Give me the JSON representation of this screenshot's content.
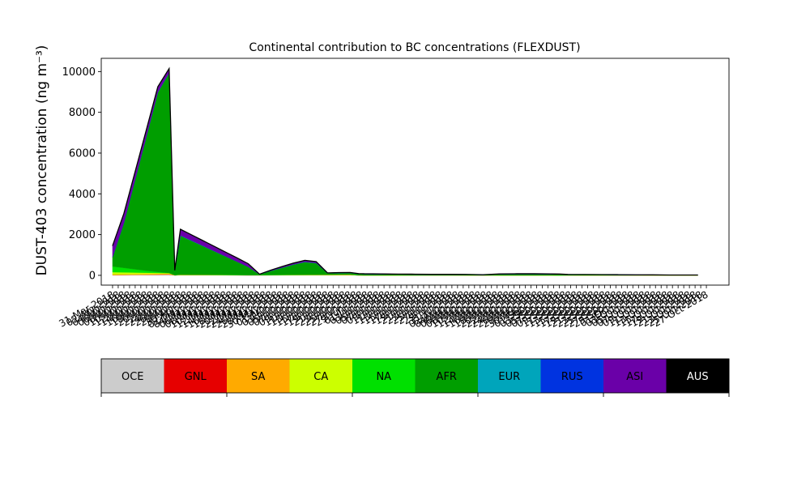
{
  "chart_data": {
    "type": "area",
    "stacked": true,
    "title": "Continental contribution to BC concentrations (FLEXDUST)",
    "ylabel": "DUST-403 concentration (ng m⁻³)",
    "xlabel": "",
    "ylim": [
      -480,
      10650
    ],
    "yticks": [
      0,
      2000,
      4000,
      6000,
      8000,
      10000
    ],
    "grid": false,
    "x": [
      "2018-03-31",
      "2018-04-04",
      "2018-04-08",
      "2018-04-12",
      "2018-04-16",
      "2018-04-20",
      "2018-04-22",
      "2018-04-24",
      "2018-04-28",
      "2018-05-02",
      "2018-05-06",
      "2018-05-10",
      "2018-05-14",
      "2018-05-18",
      "2018-05-22",
      "2018-05-26",
      "2018-05-30",
      "2018-06-03",
      "2018-06-07",
      "2018-06-11",
      "2018-06-15",
      "2018-06-19",
      "2018-06-23",
      "2018-06-26",
      "2018-06-28",
      "2018-07-04",
      "2018-07-10",
      "2018-07-16",
      "2018-07-22",
      "2018-07-28",
      "2018-08-03",
      "2018-08-09",
      "2018-08-15",
      "2018-08-21",
      "2018-08-27",
      "2018-09-02",
      "2018-09-05",
      "2018-09-08",
      "2018-09-14",
      "2018-09-20",
      "2018-09-26",
      "2018-10-02",
      "2018-10-08",
      "2018-10-14",
      "2018-10-20",
      "2018-10-24"
    ],
    "xtick_labels": [
      "31-Mar-2018",
      "02-Apr-2018",
      "04-Apr-2018",
      "06-Apr-2018",
      "08-Apr-2018",
      "10-Apr-2018",
      "12-Apr-2018",
      "14-Apr-2018",
      "16-Apr-2018",
      "18-Apr-2018",
      "20-Apr-2018",
      "22-Apr-2018",
      "24-Apr-2018",
      "26-Apr-2018",
      "28-Apr-2018",
      "30-Apr-2018",
      "02-May-2018",
      "04-May-2018",
      "06-May-2018",
      "08-May-2018",
      "10-May-2018",
      "12-May-2018",
      "14-May-2018",
      "16-May-2018",
      "18-May-2018",
      "20-May-2018",
      "22-May-2018",
      "24-May-2018",
      "26-May-2018",
      "28-May-2018",
      "30-May-2018",
      "01-Jun-2018",
      "03-Jun-2018",
      "05-Jun-2018",
      "07-Jun-2018",
      "09-Jun-2018",
      "11-Jun-2018",
      "13-Jun-2018",
      "15-Jun-2018",
      "17-Jun-2018",
      "19-Jun-2018",
      "21-Jun-2018",
      "23-Jun-2018",
      "25-Jun-2018",
      "27-Jun-2018",
      "29-Jun-2018",
      "01-Jul-2018",
      "03-Jul-2018",
      "05-Jul-2018",
      "07-Jul-2018",
      "09-Jul-2018",
      "11-Jul-2018",
      "13-Jul-2018",
      "15-Jul-2018",
      "17-Jul-2018",
      "19-Jul-2018",
      "21-Jul-2018",
      "23-Jul-2018",
      "25-Jul-2018",
      "27-Jul-2018",
      "29-Jul-2018",
      "31-Jul-2018",
      "02-Aug-2018",
      "04-Aug-2018",
      "06-Aug-2018",
      "08-Aug-2018",
      "10-Aug-2018",
      "12-Aug-2018",
      "14-Aug-2018",
      "16-Aug-2018",
      "18-Aug-2018",
      "20-Aug-2018",
      "22-Aug-2018",
      "24-Aug-2018",
      "26-Aug-2018",
      "28-Aug-2018",
      "30-Aug-2018",
      "01-Sep-2018",
      "03-Sep-2018",
      "05-Sep-2018",
      "07-Sep-2018",
      "09-Sep-2018",
      "11-Sep-2018",
      "13-Sep-2018",
      "15-Sep-2018",
      "17-Sep-2018",
      "19-Sep-2018",
      "21-Sep-2018",
      "23-Sep-2018",
      "25-Sep-2018",
      "27-Sep-2018",
      "29-Sep-2018",
      "01-Oct-2018",
      "03-Oct-2018",
      "05-Oct-2018",
      "07-Oct-2018",
      "09-Oct-2018",
      "11-Oct-2018",
      "13-Oct-2018",
      "15-Oct-2018",
      "17-Oct-2018",
      "19-Oct-2018",
      "21-Oct-2018",
      "23-Oct-2018",
      "25-Oct-2018",
      "27-Oct-2018"
    ],
    "series": [
      {
        "name": "OCE",
        "color": "#cccccc",
        "values": [
          15,
          20,
          25,
          30,
          35,
          40,
          2,
          10,
          9,
          8,
          7,
          6,
          5,
          3,
          4,
          5,
          6,
          7,
          8,
          9,
          10,
          11,
          12,
          2,
          1,
          1,
          1,
          1,
          1,
          1,
          1,
          1,
          1,
          1,
          1,
          1,
          0,
          1,
          1,
          1,
          1,
          1,
          1,
          1,
          1,
          1
        ]
      },
      {
        "name": "GNL",
        "color": "#e60000",
        "values": [
          2,
          3,
          3,
          4,
          4,
          5,
          0,
          2,
          2,
          2,
          1,
          1,
          1,
          1,
          1,
          1,
          1,
          1,
          1,
          1,
          2,
          2,
          2,
          0,
          0,
          0,
          0,
          0,
          0,
          0,
          0,
          0,
          0,
          0,
          0,
          0,
          0,
          0,
          0,
          0,
          0,
          0,
          0,
          0,
          0,
          0
        ]
      },
      {
        "name": "SA",
        "color": "#ffaa00",
        "values": [
          20,
          25,
          30,
          35,
          40,
          45,
          2,
          10,
          9,
          8,
          7,
          6,
          5,
          3,
          4,
          5,
          6,
          7,
          8,
          9,
          10,
          11,
          12,
          2,
          1,
          1,
          1,
          1,
          1,
          1,
          1,
          1,
          1,
          1,
          1,
          1,
          0,
          1,
          1,
          1,
          1,
          1,
          1,
          1,
          1,
          1
        ]
      },
      {
        "name": "CA",
        "color": "#ccff00",
        "values": [
          120,
          100,
          80,
          60,
          40,
          20,
          5,
          10,
          9,
          8,
          7,
          6,
          5,
          3,
          4,
          5,
          6,
          7,
          8,
          9,
          10,
          11,
          12,
          2,
          1,
          1,
          1,
          1,
          1,
          1,
          1,
          1,
          1,
          1,
          1,
          1,
          0,
          1,
          1,
          1,
          1,
          1,
          1,
          1,
          1,
          1
        ]
      },
      {
        "name": "NA",
        "color": "#00e000",
        "values": [
          280,
          220,
          160,
          100,
          50,
          10,
          3,
          10,
          9,
          8,
          7,
          6,
          5,
          3,
          4,
          5,
          6,
          7,
          8,
          9,
          10,
          11,
          12,
          2,
          1,
          1,
          1,
          1,
          1,
          1,
          1,
          1,
          1,
          1,
          1,
          1,
          0,
          1,
          1,
          1,
          1,
          1,
          1,
          1,
          1,
          1
        ]
      },
      {
        "name": "AFR",
        "color": "#009e00",
        "values": [
          450,
          2200,
          4400,
          6600,
          8800,
          9800,
          230,
          1900,
          1650,
          1400,
          1150,
          900,
          650,
          400,
          30,
          200,
          350,
          500,
          620,
          560,
          60,
          70,
          70,
          60,
          55,
          50,
          40,
          35,
          30,
          30,
          25,
          15,
          50,
          55,
          55,
          50,
          45,
          30,
          25,
          20,
          15,
          10,
          8,
          5,
          5,
          5
        ]
      },
      {
        "name": "EUR",
        "color": "#00a5bb",
        "values": [
          8,
          10,
          12,
          14,
          16,
          18,
          2,
          15,
          14,
          12,
          10,
          8,
          6,
          4,
          2,
          4,
          6,
          8,
          10,
          10,
          3,
          4,
          4,
          3,
          3,
          3,
          3,
          3,
          3,
          3,
          3,
          2,
          3,
          3,
          3,
          3,
          3,
          3,
          3,
          3,
          3,
          3,
          3,
          3,
          3,
          3
        ]
      },
      {
        "name": "RUS",
        "color": "#0033e0",
        "values": [
          4,
          5,
          5,
          6,
          6,
          7,
          1,
          5,
          5,
          4,
          4,
          3,
          2,
          1,
          1,
          2,
          3,
          3,
          3,
          3,
          1,
          1,
          1,
          1,
          1,
          1,
          1,
          1,
          1,
          1,
          1,
          1,
          1,
          1,
          1,
          1,
          1,
          1,
          1,
          1,
          1,
          1,
          1,
          1,
          1,
          1
        ]
      },
      {
        "name": "ASI",
        "color": "#6a00a8",
        "values": [
          550,
          450,
          380,
          320,
          260,
          200,
          5,
          300,
          275,
          250,
          225,
          200,
          180,
          150,
          5,
          30,
          50,
          60,
          70,
          60,
          15,
          15,
          15,
          15,
          15,
          15,
          15,
          15,
          15,
          15,
          15,
          10,
          15,
          15,
          15,
          15,
          15,
          10,
          10,
          10,
          10,
          10,
          8,
          5,
          5,
          5
        ]
      },
      {
        "name": "AUS",
        "color": "#000000",
        "values": [
          1,
          1,
          1,
          1,
          1,
          1,
          0,
          1,
          1,
          1,
          1,
          1,
          1,
          1,
          0,
          1,
          1,
          1,
          1,
          1,
          0,
          0,
          0,
          0,
          0,
          0,
          0,
          0,
          0,
          0,
          0,
          0,
          0,
          0,
          0,
          0,
          0,
          0,
          0,
          0,
          0,
          0,
          0,
          0,
          0,
          0
        ]
      }
    ],
    "legend": {
      "placement": "bottom",
      "labels": [
        "OCE",
        "GNL",
        "SA",
        "CA",
        "NA",
        "AFR",
        "EUR",
        "RUS",
        "ASI",
        "AUS"
      ],
      "colors": [
        "#cccccc",
        "#e60000",
        "#ffaa00",
        "#ccff00",
        "#00e000",
        "#009e00",
        "#00a5bb",
        "#0033e0",
        "#6a00a8",
        "#000000"
      ]
    }
  }
}
